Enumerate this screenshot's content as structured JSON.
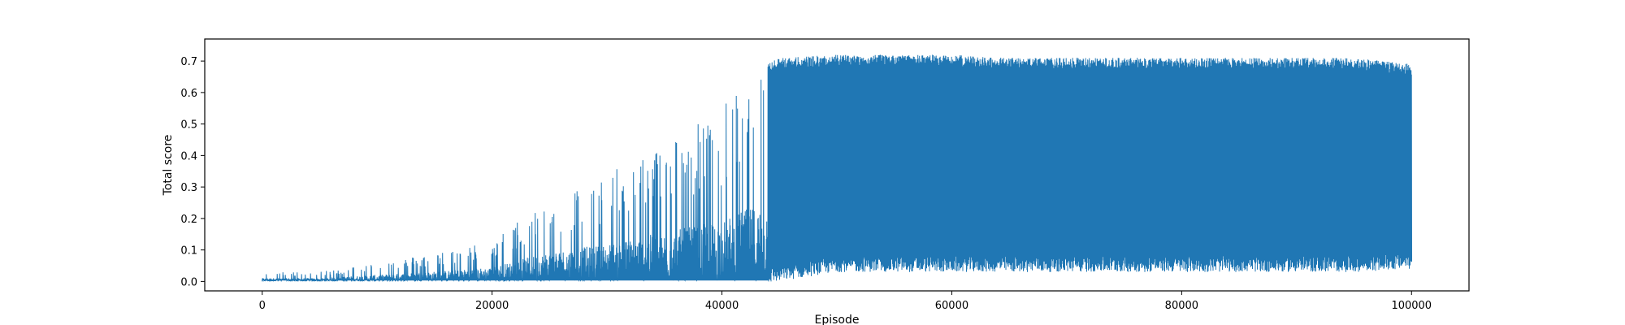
{
  "chart_data": {
    "type": "line",
    "title": "",
    "xlabel": "Episode",
    "ylabel": "Total score",
    "xlim": [
      -5000,
      105000
    ],
    "ylim": [
      -0.03,
      0.77
    ],
    "grid": false,
    "legend": "none",
    "x_ticks": [
      0,
      20000,
      40000,
      60000,
      80000,
      100000
    ],
    "x_tick_labels": [
      "0",
      "20000",
      "40000",
      "60000",
      "80000",
      "100000"
    ],
    "y_ticks": [
      0.0,
      0.1,
      0.2,
      0.3,
      0.4,
      0.5,
      0.6,
      0.7
    ],
    "y_tick_labels": [
      "0.0",
      "0.1",
      "0.2",
      "0.3",
      "0.4",
      "0.5",
      "0.6",
      "0.7"
    ],
    "series": [
      {
        "color": "#2077b4",
        "x": [
          0,
          5000,
          10000,
          15000,
          20000,
          25000,
          30000,
          35000,
          40000,
          42000,
          45000,
          50000,
          55000,
          60000,
          65000,
          70000,
          75000,
          80000,
          85000,
          90000,
          95000,
          100000
        ],
        "y_min": [
          0.0,
          0.0,
          0.0,
          0.0,
          0.0,
          0.0,
          0.0,
          0.0,
          0.0,
          0.0,
          0.0,
          0.0,
          0.0,
          0.0,
          0.0,
          0.0,
          0.0,
          0.0,
          0.0,
          0.0,
          0.0,
          0.06
        ],
        "y_max": [
          0.03,
          0.03,
          0.06,
          0.09,
          0.13,
          0.27,
          0.34,
          0.45,
          0.55,
          0.66,
          0.71,
          0.72,
          0.72,
          0.72,
          0.71,
          0.71,
          0.71,
          0.71,
          0.71,
          0.71,
          0.71,
          0.69
        ],
        "y_envelope_floor": [
          0.0,
          0.0,
          0.0,
          0.0,
          0.0,
          0.0,
          0.0,
          0.0,
          0.0,
          0.0,
          0.02,
          0.05,
          0.05,
          0.05,
          0.05,
          0.05,
          0.05,
          0.05,
          0.05,
          0.05,
          0.05,
          0.06
        ]
      }
    ]
  }
}
